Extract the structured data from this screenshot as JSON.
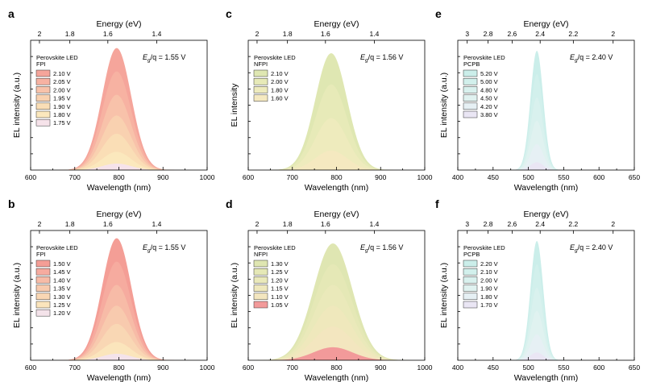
{
  "chart_data": [
    {
      "panel": "a",
      "type": "area",
      "title": "",
      "xlabel": "Wavelength (nm)",
      "ylabel": "EL intensity (a.u.)",
      "top_axis_label": "Energy (eV)",
      "top_ticks": [
        "2",
        "1.8",
        "1.6",
        "1.4"
      ],
      "xlim": [
        600,
        1000
      ],
      "xticks": [
        "600",
        "700",
        "800",
        "900",
        "1000"
      ],
      "legend_title": "Perovskite LED",
      "legend_subtitle": "FPI",
      "annotation": {
        "prefix": "E",
        "sub": "g",
        "rest": "/q = 1.55 V"
      },
      "peak_nm": 795,
      "width_nm": 33,
      "series": [
        {
          "name": "2.10 V",
          "peak": 0.94,
          "color": "#f5a59b"
        },
        {
          "name": "2.05 V",
          "peak": 0.76,
          "color": "#f7b2a2"
        },
        {
          "name": "2.00 V",
          "peak": 0.58,
          "color": "#f8c2aa"
        },
        {
          "name": "1.95 V",
          "peak": 0.42,
          "color": "#f9d1b0"
        },
        {
          "name": "1.90 V",
          "peak": 0.28,
          "color": "#fadeb6"
        },
        {
          "name": "1.80 V",
          "peak": 0.14,
          "color": "#fbe8bd"
        },
        {
          "name": "1.75 V",
          "peak": 0.05,
          "color": "#f6e3ea"
        }
      ]
    },
    {
      "panel": "c",
      "type": "area",
      "title": "",
      "xlabel": "Wavelength (nm)",
      "ylabel": "EL intensity",
      "top_axis_label": "Energy (eV)",
      "top_ticks": [
        "2",
        "1.8",
        "1.6",
        "1.4"
      ],
      "xlim": [
        600,
        1000
      ],
      "xticks": [
        "600",
        "700",
        "800",
        "900",
        "1000"
      ],
      "legend_title": "Perovskite LED",
      "legend_subtitle": "NFPI",
      "annotation": {
        "prefix": "E",
        "sub": "g",
        "rest": "/q = 1.56 V"
      },
      "peak_nm": 788,
      "width_nm": 36,
      "series": [
        {
          "name": "2.10 V",
          "peak": 0.9,
          "color": "#dfe7b2"
        },
        {
          "name": "2.00 V",
          "peak": 0.66,
          "color": "#e7eab8"
        },
        {
          "name": "1.80 V",
          "peak": 0.4,
          "color": "#eeebbd"
        },
        {
          "name": "1.60 V",
          "peak": 0.15,
          "color": "#f5e9c0"
        }
      ]
    },
    {
      "panel": "e",
      "type": "area",
      "title": "",
      "xlabel": "Wavelength (nm)",
      "ylabel": "EL intensity (a.u.)",
      "top_axis_label": "Energy (eV)",
      "top_ticks": [
        "3",
        "2.8",
        "2.6",
        "2.4",
        "2.2",
        "2"
      ],
      "xlim": [
        400,
        650
      ],
      "xticks": [
        "400",
        "450",
        "500",
        "550",
        "600",
        "650"
      ],
      "legend_title": "Perovskite LED",
      "legend_subtitle": "PCPB",
      "annotation": {
        "prefix": "E",
        "sub": "g",
        "rest": "/q = 2.40 V"
      },
      "peak_nm": 512,
      "width_nm": 9,
      "series": [
        {
          "name": "5.20 V",
          "peak": 0.92,
          "color": "#cbeeea"
        },
        {
          "name": "5.00 V",
          "peak": 0.74,
          "color": "#d2f0ec"
        },
        {
          "name": "4.80 V",
          "peak": 0.56,
          "color": "#d9f1ee"
        },
        {
          "name": "4.50 V",
          "peak": 0.38,
          "color": "#e0f2f0"
        },
        {
          "name": "4.20 V",
          "peak": 0.2,
          "color": "#e6f0f4"
        },
        {
          "name": "3.80 V",
          "peak": 0.06,
          "color": "#eae6f4"
        }
      ]
    },
    {
      "panel": "b",
      "type": "area",
      "title": "",
      "xlabel": "Wavelength (nm)",
      "ylabel": "EL intensity (a.u.)",
      "top_axis_label": "Energy (eV)",
      "top_ticks": [
        "2",
        "1.8",
        "1.6",
        "1.4"
      ],
      "xlim": [
        600,
        1000
      ],
      "xticks": [
        "600",
        "700",
        "800",
        "900",
        "1000"
      ],
      "legend_title": "Perovskite LED",
      "legend_subtitle": "FPI",
      "annotation": {
        "prefix": "E",
        "sub": "g",
        "rest": "/q = 1.55 V"
      },
      "peak_nm": 795,
      "width_nm": 33,
      "series": [
        {
          "name": "1.50 V",
          "peak": 0.94,
          "color": "#f49e96"
        },
        {
          "name": "1.45 V",
          "peak": 0.76,
          "color": "#f6ab9f"
        },
        {
          "name": "1.40 V",
          "peak": 0.58,
          "color": "#f7bba7"
        },
        {
          "name": "1.35 V",
          "peak": 0.42,
          "color": "#f8caae"
        },
        {
          "name": "1.30 V",
          "peak": 0.28,
          "color": "#f9d7b4"
        },
        {
          "name": "1.25 V",
          "peak": 0.14,
          "color": "#fbe5bc"
        },
        {
          "name": "1.20 V",
          "peak": 0.05,
          "color": "#f4e3ea"
        }
      ]
    },
    {
      "panel": "d",
      "type": "area",
      "title": "",
      "xlabel": "Wavelength (nm)",
      "ylabel": "EL intensity (a.u.)",
      "top_axis_label": "Energy (eV)",
      "top_ticks": [
        "2",
        "1.8",
        "1.6",
        "1.4"
      ],
      "xlim": [
        600,
        1000
      ],
      "xticks": [
        "600",
        "700",
        "800",
        "900",
        "1000"
      ],
      "legend_title": "Perovskite LED",
      "legend_subtitle": "NFPI",
      "annotation": {
        "prefix": "E",
        "sub": "g",
        "rest": "/q = 1.56 V"
      },
      "peak_nm": 792,
      "width_nm": 44,
      "series": [
        {
          "name": "1.30 V",
          "peak": 0.9,
          "color": "#dfe6b2"
        },
        {
          "name": "1.25 V",
          "peak": 0.74,
          "color": "#e5e8b6"
        },
        {
          "name": "1.20 V",
          "peak": 0.58,
          "color": "#eae9ba"
        },
        {
          "name": "1.15 V",
          "peak": 0.42,
          "color": "#efe8bc"
        },
        {
          "name": "1.10 V",
          "peak": 0.26,
          "color": "#f3e6bf"
        },
        {
          "name": "1.05 V",
          "peak": 0.1,
          "color": "#f29a9a"
        }
      ]
    },
    {
      "panel": "f",
      "type": "area",
      "title": "",
      "xlabel": "Wavelength (nm)",
      "ylabel": "EL intensity (a.u.)",
      "top_axis_label": "Energy (eV)",
      "top_ticks": [
        "3",
        "2.8",
        "2.6",
        "2.4",
        "2.2",
        "2"
      ],
      "xlim": [
        400,
        650
      ],
      "xticks": [
        "400",
        "450",
        "500",
        "550",
        "600",
        "650"
      ],
      "legend_title": "Perovskite LED",
      "legend_subtitle": "PCPB",
      "annotation": {
        "prefix": "E",
        "sub": "g",
        "rest": "/q = 2.40 V"
      },
      "peak_nm": 512,
      "width_nm": 9,
      "series": [
        {
          "name": "2.20 V",
          "peak": 0.92,
          "color": "#cbeeea"
        },
        {
          "name": "2.10 V",
          "peak": 0.74,
          "color": "#d2f0ec"
        },
        {
          "name": "2.00 V",
          "peak": 0.56,
          "color": "#d9f1ee"
        },
        {
          "name": "1.90 V",
          "peak": 0.38,
          "color": "#e0f2f0"
        },
        {
          "name": "1.80 V",
          "peak": 0.2,
          "color": "#e6f0f4"
        },
        {
          "name": "1.70 V",
          "peak": 0.06,
          "color": "#eae6f4"
        }
      ]
    }
  ]
}
